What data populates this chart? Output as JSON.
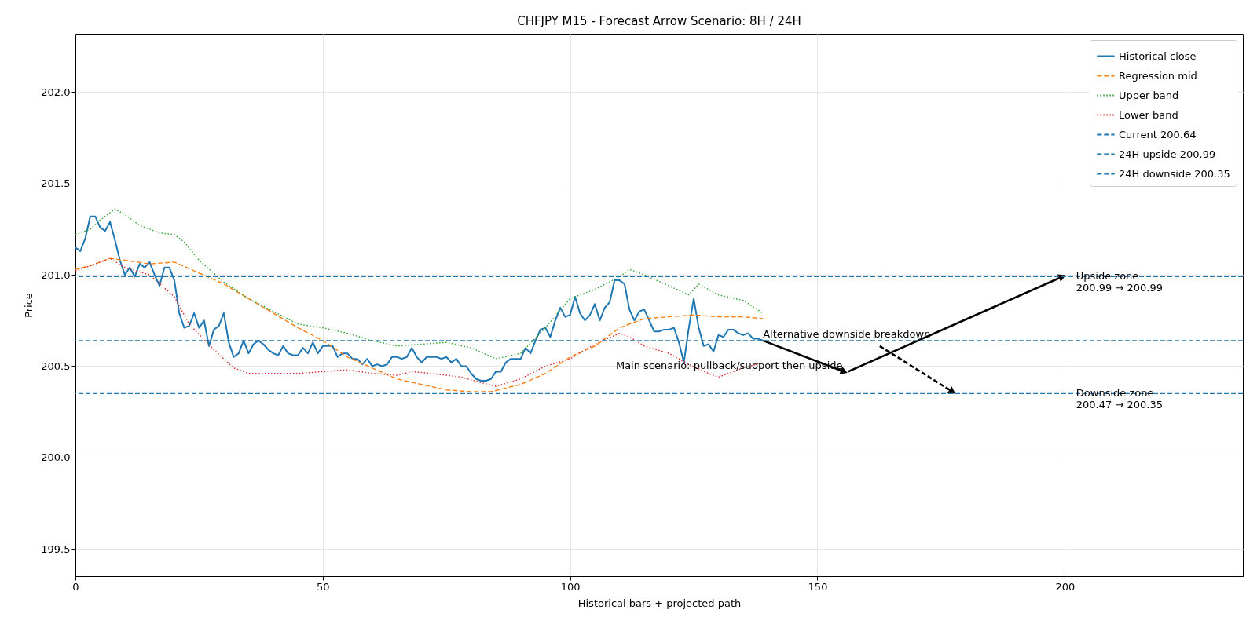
{
  "chart_data": {
    "type": "line",
    "title": "CHFJPY M15 - Forecast Arrow Scenario: 8H / 24H",
    "xlabel": "Historical bars + projected path",
    "ylabel": "Price",
    "xlim": [
      0,
      236
    ],
    "xticks": [
      0,
      50,
      100,
      150,
      200
    ],
    "ylim": [
      199.35,
      202.32
    ],
    "yticks": [
      199.5,
      {
        "value": 200,
        "label": "200.0"
      },
      200.5,
      {
        "value": 201,
        "label": "201.0"
      },
      201.5,
      {
        "value": 202,
        "label": "202.0"
      }
    ],
    "grid": true,
    "legend": "top right",
    "series": [
      {
        "name": "Historical close",
        "color": "#1f77b4",
        "line_style": "solid",
        "x": [
          0,
          1,
          2,
          3,
          4,
          5,
          6,
          7,
          8,
          9,
          10,
          11,
          12,
          13,
          14,
          15,
          16,
          17,
          18,
          19,
          20,
          21,
          22,
          23,
          24,
          25,
          26,
          27,
          28,
          29,
          30,
          31,
          32,
          33,
          34,
          35,
          36,
          37,
          38,
          39,
          40,
          41,
          42,
          43,
          44,
          45,
          46,
          47,
          48,
          49,
          50,
          51,
          52,
          53,
          54,
          55,
          56,
          57,
          58,
          59,
          60,
          61,
          62,
          63,
          64,
          65,
          66,
          67,
          68,
          69,
          70,
          71,
          72,
          73,
          74,
          75,
          76,
          77,
          78,
          79,
          80,
          81,
          82,
          83,
          84,
          85,
          86,
          87,
          88,
          89,
          90,
          91,
          92,
          93,
          94,
          95,
          96,
          97,
          98,
          99,
          100,
          101,
          102,
          103,
          104,
          105,
          106,
          107,
          108,
          109,
          110,
          111,
          112,
          113,
          114,
          115,
          116,
          117,
          118,
          119,
          120,
          121,
          122,
          123,
          124,
          125,
          126,
          127,
          128,
          129,
          130,
          131,
          132,
          133,
          134,
          135,
          136,
          137,
          138,
          139
        ],
        "values": [
          201.15,
          201.13,
          201.2,
          201.32,
          201.32,
          201.26,
          201.24,
          201.29,
          201.19,
          201.08,
          201.0,
          201.04,
          200.99,
          201.06,
          201.04,
          201.07,
          201.0,
          200.94,
          201.04,
          201.04,
          200.97,
          200.79,
          200.71,
          200.72,
          200.79,
          200.71,
          200.75,
          200.61,
          200.7,
          200.72,
          200.79,
          200.63,
          200.55,
          200.57,
          200.64,
          200.57,
          200.62,
          200.64,
          200.62,
          200.59,
          200.57,
          200.56,
          200.61,
          200.57,
          200.56,
          200.56,
          200.6,
          200.57,
          200.63,
          200.57,
          200.61,
          200.61,
          200.61,
          200.55,
          200.57,
          200.57,
          200.54,
          200.54,
          200.51,
          200.54,
          200.5,
          200.51,
          200.5,
          200.51,
          200.55,
          200.55,
          200.54,
          200.55,
          200.6,
          200.55,
          200.52,
          200.55,
          200.55,
          200.55,
          200.54,
          200.55,
          200.52,
          200.54,
          200.5,
          200.5,
          200.46,
          200.43,
          200.42,
          200.42,
          200.43,
          200.47,
          200.47,
          200.52,
          200.54,
          200.54,
          200.54,
          200.6,
          200.57,
          200.64,
          200.7,
          200.71,
          200.66,
          200.75,
          200.82,
          200.77,
          200.78,
          200.88,
          200.79,
          200.75,
          200.78,
          200.84,
          200.75,
          200.82,
          200.85,
          200.97,
          200.97,
          200.95,
          200.81,
          200.75,
          200.8,
          200.81,
          200.75,
          200.69,
          200.69,
          200.7,
          200.7,
          200.71,
          200.63,
          200.52,
          200.71,
          200.87,
          200.71,
          200.61,
          200.62,
          200.58,
          200.67,
          200.66,
          200.7,
          200.7,
          200.68,
          200.67,
          200.68,
          200.65,
          200.65,
          200.64
        ]
      },
      {
        "name": "Regression mid",
        "color": "#ff7f0e",
        "line_style": "dashed",
        "x": [
          0,
          3,
          7,
          10,
          15,
          20,
          25,
          30,
          35,
          40,
          45,
          50,
          55,
          60,
          65,
          70,
          75,
          80,
          84,
          90,
          95,
          100,
          105,
          110,
          115,
          120,
          125,
          130,
          135,
          139
        ],
        "values": [
          201.03,
          201.05,
          201.09,
          201.08,
          201.06,
          201.07,
          201.01,
          200.95,
          200.87,
          200.79,
          200.71,
          200.64,
          200.55,
          200.49,
          200.43,
          200.4,
          200.37,
          200.36,
          200.36,
          200.4,
          200.46,
          200.55,
          200.61,
          200.71,
          200.76,
          200.77,
          200.78,
          200.77,
          200.77,
          200.76
        ]
      },
      {
        "name": "Upper band",
        "color": "#2ca02c",
        "line_style": "dotted",
        "x": [
          0,
          3,
          5,
          8,
          10,
          13,
          17,
          20,
          22,
          25,
          30,
          35,
          40,
          45,
          50,
          55,
          60,
          65,
          70,
          75,
          80,
          85,
          90,
          95,
          100,
          105,
          110,
          112,
          115,
          120,
          124,
          126,
          130,
          135,
          139
        ],
        "values": [
          201.22,
          201.25,
          201.3,
          201.36,
          201.33,
          201.27,
          201.23,
          201.22,
          201.18,
          201.08,
          200.96,
          200.87,
          200.8,
          200.73,
          200.71,
          200.68,
          200.64,
          200.61,
          200.62,
          200.63,
          200.6,
          200.54,
          200.57,
          200.71,
          200.87,
          200.92,
          200.99,
          201.03,
          201.0,
          200.94,
          200.89,
          200.95,
          200.89,
          200.86,
          200.79
        ]
      },
      {
        "name": "Lower band",
        "color": "#d62728",
        "line_style": "dotted",
        "x": [
          0,
          3,
          7,
          10,
          15,
          20,
          23,
          28,
          32,
          35,
          40,
          45,
          50,
          55,
          60,
          65,
          68,
          72,
          78,
          82,
          85,
          90,
          95,
          100,
          105,
          110,
          112,
          115,
          120,
          124,
          128,
          130,
          135,
          139
        ],
        "values": [
          201.02,
          201.05,
          201.09,
          201.04,
          201.0,
          200.88,
          200.73,
          200.59,
          200.49,
          200.46,
          200.46,
          200.46,
          200.47,
          200.48,
          200.46,
          200.45,
          200.47,
          200.46,
          200.44,
          200.41,
          200.39,
          200.43,
          200.5,
          200.54,
          200.62,
          200.68,
          200.66,
          200.61,
          200.57,
          200.51,
          200.46,
          200.44,
          200.49,
          200.52
        ]
      },
      {
        "type": "line",
        "color": "#000000",
        "line_style": "solid",
        "x": [
          139,
          155.4
        ],
        "values": [
          200.64,
          200.47
        ]
      },
      {
        "type": "line",
        "color": "#000000",
        "line_style": "solid",
        "x": [
          156.2,
          199.5
        ],
        "values": [
          200.47,
          200.99
        ]
      },
      {
        "type": "line",
        "color": "#000000",
        "line_style": "dashed",
        "x": [
          162.6,
          177.3
        ],
        "values": [
          200.61,
          200.36
        ]
      }
    ],
    "ref_lines": [
      {
        "axis": "y",
        "value": 200.64,
        "label": "Current 200.64",
        "color": "#1f77b4",
        "line_style": "dashed"
      },
      {
        "axis": "y",
        "value": 200.99,
        "label": "24H upside 200.99",
        "color": "#1f77b4",
        "line_style": "dashed"
      },
      {
        "axis": "y",
        "value": 200.35,
        "label": "24H downside 200.35",
        "color": "#1f77b4",
        "line_style": "dashed"
      }
    ],
    "annotations": [
      {
        "text": "Upside zone\n200.99 → 200.99",
        "x": 202.3,
        "y": 200.99
      },
      {
        "text": "Downside zone\n200.47 → 200.35",
        "x": 202.3,
        "y": 200.35
      },
      {
        "text": "Alternative downside breakdown",
        "x": 139,
        "y": 200.64
      },
      {
        "text": "Main scenario: pullback/support then upside",
        "x": 155.4,
        "y": 200.47
      }
    ]
  }
}
